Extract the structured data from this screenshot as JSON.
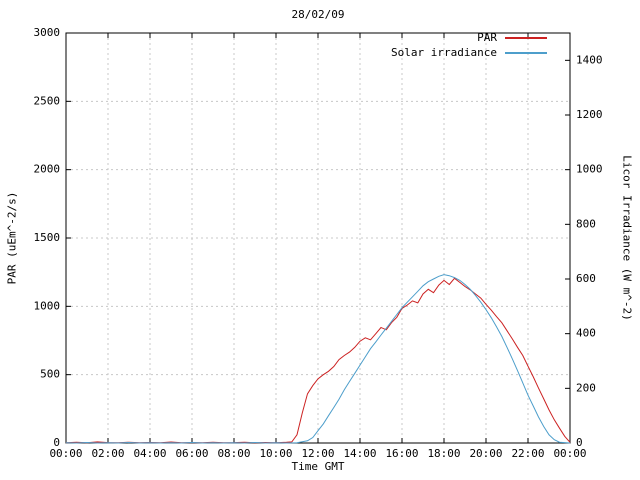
{
  "chart_data": {
    "type": "line",
    "title": "28/02/09",
    "xlabel": "Time GMT",
    "ylabel_left": "PAR (uEm^-2/s)",
    "ylabel_right": "Licor Irradiance (W m^-2)",
    "x_range": [
      0,
      24
    ],
    "x_tick_hours": [
      0,
      2,
      4,
      6,
      8,
      10,
      12,
      14,
      16,
      18,
      20,
      22,
      24
    ],
    "x_tick_labels": [
      "00:00",
      "02:00",
      "04:00",
      "06:00",
      "08:00",
      "10:00",
      "12:00",
      "14:00",
      "16:00",
      "18:00",
      "20:00",
      "22:00",
      "00:00"
    ],
    "y_left_range": [
      0,
      3000
    ],
    "y_left_ticks": [
      0,
      500,
      1000,
      1500,
      2000,
      2500,
      3000
    ],
    "y_right_range": [
      0,
      1500
    ],
    "y_right_ticks": [
      0,
      200,
      400,
      600,
      800,
      1000,
      1200,
      1400
    ],
    "grid": true,
    "legend_position": "top-right",
    "colors": {
      "grid": "#c8c8c8",
      "axis": "#000000",
      "par": "#cc2222",
      "solar": "#4d9ecb"
    },
    "series": [
      {
        "name": "PAR",
        "axis": "left",
        "color": "#cc2222",
        "points": [
          [
            0,
            2
          ],
          [
            0.5,
            5
          ],
          [
            1,
            2
          ],
          [
            1.5,
            8
          ],
          [
            2,
            3
          ],
          [
            2.5,
            2
          ],
          [
            3,
            6
          ],
          [
            3.5,
            2
          ],
          [
            4,
            4
          ],
          [
            4.5,
            2
          ],
          [
            5,
            7
          ],
          [
            5.5,
            2
          ],
          [
            6,
            3
          ],
          [
            6.5,
            2
          ],
          [
            7,
            5
          ],
          [
            7.5,
            2
          ],
          [
            8,
            3
          ],
          [
            8.5,
            6
          ],
          [
            9,
            2
          ],
          [
            9.5,
            4
          ],
          [
            10,
            2
          ],
          [
            10.5,
            5
          ],
          [
            10.75,
            8
          ],
          [
            11,
            60
          ],
          [
            11.25,
            220
          ],
          [
            11.5,
            360
          ],
          [
            11.75,
            420
          ],
          [
            12,
            470
          ],
          [
            12.25,
            500
          ],
          [
            12.5,
            525
          ],
          [
            12.75,
            560
          ],
          [
            13,
            610
          ],
          [
            13.25,
            640
          ],
          [
            13.5,
            665
          ],
          [
            13.75,
            700
          ],
          [
            14,
            745
          ],
          [
            14.25,
            770
          ],
          [
            14.5,
            755
          ],
          [
            14.75,
            800
          ],
          [
            15,
            845
          ],
          [
            15.25,
            828
          ],
          [
            15.5,
            880
          ],
          [
            15.75,
            920
          ],
          [
            16,
            985
          ],
          [
            16.25,
            1010
          ],
          [
            16.5,
            1040
          ],
          [
            16.75,
            1025
          ],
          [
            17,
            1090
          ],
          [
            17.25,
            1125
          ],
          [
            17.5,
            1100
          ],
          [
            17.75,
            1155
          ],
          [
            18,
            1190
          ],
          [
            18.25,
            1160
          ],
          [
            18.5,
            1205
          ],
          [
            18.75,
            1175
          ],
          [
            19,
            1145
          ],
          [
            19.25,
            1120
          ],
          [
            19.5,
            1090
          ],
          [
            19.75,
            1060
          ],
          [
            20,
            1015
          ],
          [
            20.25,
            972
          ],
          [
            20.5,
            925
          ],
          [
            20.75,
            880
          ],
          [
            21,
            822
          ],
          [
            21.25,
            762
          ],
          [
            21.5,
            700
          ],
          [
            21.75,
            640
          ],
          [
            22,
            562
          ],
          [
            22.25,
            484
          ],
          [
            22.5,
            402
          ],
          [
            22.75,
            322
          ],
          [
            23,
            242
          ],
          [
            23.25,
            170
          ],
          [
            23.5,
            108
          ],
          [
            23.75,
            48
          ],
          [
            24,
            5
          ]
        ]
      },
      {
        "name": "Solar irradiance",
        "axis": "right",
        "color": "#4d9ecb",
        "points": [
          [
            0,
            1
          ],
          [
            0.5,
            0
          ],
          [
            1,
            2
          ],
          [
            1.5,
            0
          ],
          [
            2,
            1
          ],
          [
            2.5,
            0
          ],
          [
            3,
            2
          ],
          [
            3.5,
            0
          ],
          [
            4,
            1
          ],
          [
            4.5,
            0
          ],
          [
            5,
            1
          ],
          [
            5.5,
            0
          ],
          [
            6,
            2
          ],
          [
            6.5,
            0
          ],
          [
            7,
            1
          ],
          [
            7.5,
            0
          ],
          [
            8,
            1
          ],
          [
            8.5,
            0
          ],
          [
            9,
            2
          ],
          [
            9.5,
            0
          ],
          [
            10,
            1
          ],
          [
            10.5,
            0
          ],
          [
            11,
            1
          ],
          [
            11.5,
            8
          ],
          [
            11.75,
            20
          ],
          [
            12,
            45
          ],
          [
            12.25,
            70
          ],
          [
            12.5,
            100
          ],
          [
            12.75,
            130
          ],
          [
            13,
            160
          ],
          [
            13.25,
            195
          ],
          [
            13.5,
            225
          ],
          [
            13.75,
            255
          ],
          [
            14,
            285
          ],
          [
            14.25,
            315
          ],
          [
            14.5,
            345
          ],
          [
            14.75,
            370
          ],
          [
            15,
            395
          ],
          [
            15.25,
            420
          ],
          [
            15.5,
            445
          ],
          [
            15.75,
            470
          ],
          [
            16,
            495
          ],
          [
            16.25,
            515
          ],
          [
            16.5,
            535
          ],
          [
            16.75,
            555
          ],
          [
            17,
            575
          ],
          [
            17.25,
            590
          ],
          [
            17.5,
            600
          ],
          [
            17.75,
            610
          ],
          [
            18,
            616
          ],
          [
            18.25,
            612
          ],
          [
            18.5,
            605
          ],
          [
            18.75,
            595
          ],
          [
            19,
            580
          ],
          [
            19.25,
            562
          ],
          [
            19.5,
            540
          ],
          [
            19.75,
            515
          ],
          [
            20,
            488
          ],
          [
            20.25,
            458
          ],
          [
            20.5,
            425
          ],
          [
            20.75,
            390
          ],
          [
            21,
            350
          ],
          [
            21.25,
            308
          ],
          [
            21.5,
            265
          ],
          [
            21.75,
            220
          ],
          [
            22,
            175
          ],
          [
            22.25,
            135
          ],
          [
            22.5,
            95
          ],
          [
            22.75,
            60
          ],
          [
            23,
            30
          ],
          [
            23.25,
            12
          ],
          [
            23.5,
            3
          ],
          [
            24,
            0
          ]
        ]
      }
    ]
  }
}
